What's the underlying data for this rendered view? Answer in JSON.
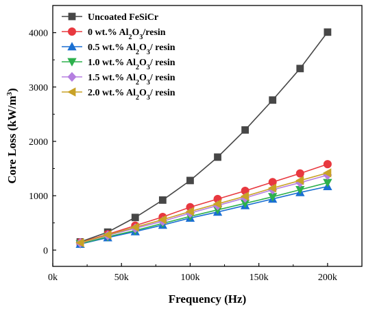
{
  "chart_data": {
    "type": "line",
    "title": "",
    "xlabel": "Frequency (Hz)",
    "ylabel_main": "Core Loss (kW/m",
    "ylabel_sup": "3",
    "ylabel_close": ")",
    "xlim": [
      0,
      225000
    ],
    "ylim": [
      -300,
      4500
    ],
    "x_ticks": [
      0,
      50000,
      100000,
      150000,
      200000
    ],
    "x_tick_labels": [
      "0k",
      "50k",
      "100k",
      "150k",
      "200k"
    ],
    "y_ticks": [
      0,
      1000,
      2000,
      3000,
      4000
    ],
    "y_tick_labels": [
      "0",
      "1000",
      "2000",
      "3000",
      "4000"
    ],
    "grid": false,
    "legend_position": "top-left",
    "x": [
      20000,
      40000,
      60000,
      80000,
      100000,
      120000,
      140000,
      160000,
      180000,
      200000
    ],
    "series": [
      {
        "label_parts": [
          {
            "t": "Uncoated FeSiCr"
          }
        ],
        "marker": "square",
        "color": "#474747",
        "values": [
          150,
          330,
          600,
          920,
          1280,
          1710,
          2210,
          2760,
          3340,
          4010
        ]
      },
      {
        "label_parts": [
          {
            "t": "0 wt.% Al"
          },
          {
            "t": "2",
            "sub": true
          },
          {
            "t": "O"
          },
          {
            "t": "3",
            "sub": true
          },
          {
            "t": "/resin"
          }
        ],
        "marker": "circle",
        "color": "#e8383f",
        "values": [
          140,
          290,
          450,
          610,
          790,
          940,
          1090,
          1250,
          1410,
          1580
        ]
      },
      {
        "label_parts": [
          {
            "t": "0.5 wt.% Al"
          },
          {
            "t": "2",
            "sub": true
          },
          {
            "t": "O"
          },
          {
            "t": "3",
            "sub": true
          },
          {
            "t": "/ resin"
          }
        ],
        "marker": "triangle-up",
        "color": "#1a6fd2",
        "values": [
          110,
          230,
          340,
          460,
          590,
          700,
          820,
          940,
          1060,
          1170
        ]
      },
      {
        "label_parts": [
          {
            "t": "1.0 wt.% Al"
          },
          {
            "t": "2",
            "sub": true
          },
          {
            "t": "O"
          },
          {
            "t": "3",
            "sub": true
          },
          {
            "t": "/ resin"
          }
        ],
        "marker": "triangle-down",
        "color": "#2db04d",
        "values": [
          115,
          245,
          360,
          490,
          620,
          740,
          860,
          980,
          1110,
          1240
        ]
      },
      {
        "label_parts": [
          {
            "t": "1.5 wt.% Al"
          },
          {
            "t": "2",
            "sub": true
          },
          {
            "t": "O"
          },
          {
            "t": "3",
            "sub": true
          },
          {
            "t": "/ resin"
          }
        ],
        "marker": "diamond",
        "color": "#b57fe0",
        "values": [
          130,
          270,
          400,
          530,
          680,
          820,
          960,
          1110,
          1240,
          1380
        ]
      },
      {
        "label_parts": [
          {
            "t": "2.0 wt.% Al"
          },
          {
            "t": "2",
            "sub": true
          },
          {
            "t": "O"
          },
          {
            "t": "3",
            "sub": true
          },
          {
            "t": "/ resin"
          }
        ],
        "marker": "triangle-left",
        "color": "#c9a227",
        "values": [
          135,
          280,
          420,
          560,
          710,
          850,
          990,
          1140,
          1280,
          1420
        ]
      }
    ]
  }
}
